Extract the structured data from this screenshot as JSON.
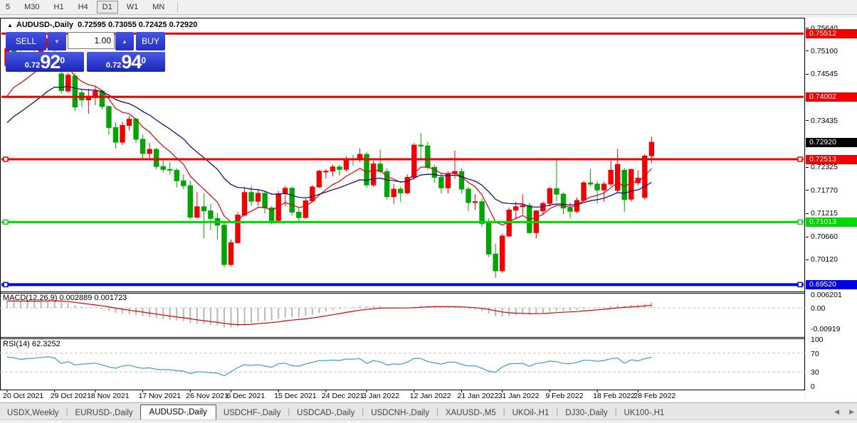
{
  "toolbar": {
    "items": [
      {
        "label": "5",
        "active": false
      },
      {
        "label": "M30",
        "active": false
      },
      {
        "label": "H1",
        "active": false
      },
      {
        "label": "H4",
        "active": false
      },
      {
        "label": "D1",
        "active": true
      },
      {
        "label": "W1",
        "active": false
      },
      {
        "label": "MN",
        "active": false
      }
    ]
  },
  "icons": {
    "collapse": "▲",
    "spinner_down": "▼",
    "spinner_up": "▲",
    "scroll_left": "◀",
    "scroll_right": "▶"
  },
  "chart_header": {
    "symbol": "AUDUSD-,Daily",
    "ohlc": "0.72595 0.73055 0.72425 0.72920"
  },
  "trade_panel": {
    "sell_label": "SELL",
    "buy_label": "BUY",
    "volume": "1.00",
    "sell": {
      "prefix": "0.72",
      "big": "92",
      "sup": "0"
    },
    "buy": {
      "prefix": "0.72",
      "big": "94",
      "sup": "0"
    }
  },
  "indicators": {
    "macd": {
      "label": "MACD(12,26,9)",
      "values": "0.002889 0.001723",
      "axis": [
        {
          "label": "0.006201",
          "value": 0.006201
        },
        {
          "label": "0.00",
          "value": 0
        },
        {
          "label": "-0.00919",
          "value": -0.00919
        }
      ]
    },
    "rsi": {
      "label": "RSI(14)",
      "value": "62.3252",
      "axis": [
        {
          "label": "100",
          "value": 100
        },
        {
          "label": "70",
          "value": 70
        },
        {
          "label": "30",
          "value": 30
        },
        {
          "label": "0",
          "value": 0
        }
      ],
      "levels": [
        70,
        30
      ]
    }
  },
  "price_axis": {
    "ticks": [
      "0.75640",
      "0.75100",
      "0.74545",
      "0.73435",
      "0.72325",
      "0.71770",
      "0.71215",
      "0.70660",
      "0.70120"
    ],
    "badges": [
      {
        "label": "0.75512",
        "price": 0.75512,
        "bg": "#f20000",
        "fg": "#ffffff"
      },
      {
        "label": "0.74002",
        "price": 0.74002,
        "bg": "#f20000",
        "fg": "#ffffff"
      },
      {
        "label": "0.72920",
        "price": 0.7292,
        "bg": "#000000",
        "fg": "#ffffff"
      },
      {
        "label": "0.72513",
        "price": 0.72513,
        "bg": "#f20000",
        "fg": "#ffffff"
      },
      {
        "label": "0.71013",
        "price": 0.71013,
        "bg": "#00d800",
        "fg": "#ffffff"
      },
      {
        "label": "0.69520",
        "price": 0.6952,
        "bg": "#0000e8",
        "fg": "#ffffff"
      }
    ]
  },
  "bottom_tabs": {
    "tabs": [
      {
        "label": "USDX,Weekly",
        "active": false
      },
      {
        "label": "EURUSD-,Daily",
        "active": false
      },
      {
        "label": "AUDUSD-,Daily",
        "active": true
      },
      {
        "label": "USDCHF-,Daily",
        "active": false
      },
      {
        "label": "USDCAD-,Daily",
        "active": false
      },
      {
        "label": "USDCNH-,Daily",
        "active": false
      },
      {
        "label": "XAUUSD-,M5",
        "active": false
      },
      {
        "label": "UKOil-,H1",
        "active": false
      },
      {
        "label": "DJ30-,Daily",
        "active": false
      },
      {
        "label": "UK100-,H1",
        "active": false
      }
    ]
  },
  "chart_data": {
    "type": "candlestick",
    "symbol": "AUDUSD-",
    "timeframe": "Daily",
    "current": {
      "open": 0.72595,
      "high": 0.73055,
      "low": 0.72425,
      "close": 0.7292
    },
    "colors": {
      "up": "#f20000",
      "down": "#00a400",
      "ma_fast": "#e00000",
      "ma_slow": "#000080",
      "macd_bar": "#b8b8b8",
      "macd_signal": "#e00000",
      "rsi_line": "#3d9bd5",
      "grid_dash": "#c4c4c4"
    },
    "candles": [
      [
        0.7475,
        0.753,
        0.7465,
        0.7515
      ],
      [
        0.7515,
        0.7546,
        0.7485,
        0.7496
      ],
      [
        0.7496,
        0.751,
        0.7458,
        0.7468
      ],
      [
        0.7468,
        0.75,
        0.746,
        0.7489
      ],
      [
        0.7489,
        0.751,
        0.747,
        0.75
      ],
      [
        0.75,
        0.7536,
        0.749,
        0.7518
      ],
      [
        0.7518,
        0.7555,
        0.751,
        0.7539
      ],
      [
        0.7539,
        0.7547,
        0.75,
        0.7518
      ],
      [
        0.7455,
        0.746,
        0.7408,
        0.7415
      ],
      [
        0.7414,
        0.7458,
        0.741,
        0.7452
      ],
      [
        0.745,
        0.7456,
        0.7366,
        0.7376
      ],
      [
        0.741,
        0.742,
        0.7376,
        0.7393
      ],
      [
        0.7393,
        0.742,
        0.736,
        0.7402
      ],
      [
        0.7402,
        0.7427,
        0.738,
        0.7414
      ],
      [
        0.7414,
        0.7418,
        0.737,
        0.7377
      ],
      [
        0.7377,
        0.738,
        0.731,
        0.7327
      ],
      [
        0.7327,
        0.734,
        0.7277,
        0.7292
      ],
      [
        0.7292,
        0.734,
        0.7285,
        0.7332
      ],
      [
        0.7332,
        0.7355,
        0.732,
        0.7347
      ],
      [
        0.7347,
        0.735,
        0.729,
        0.7299
      ],
      [
        0.7299,
        0.731,
        0.725,
        0.7265
      ],
      [
        0.7265,
        0.729,
        0.7253,
        0.7275
      ],
      [
        0.7275,
        0.7278,
        0.7227,
        0.7234
      ],
      [
        0.7234,
        0.725,
        0.722,
        0.7227
      ],
      [
        0.7227,
        0.7244,
        0.7215,
        0.7225
      ],
      [
        0.7225,
        0.723,
        0.7184,
        0.72
      ],
      [
        0.72,
        0.7215,
        0.718,
        0.7188
      ],
      [
        0.7188,
        0.72,
        0.7108,
        0.7113
      ],
      [
        0.7113,
        0.7173,
        0.711,
        0.7138
      ],
      [
        0.7138,
        0.717,
        0.7063,
        0.7128
      ],
      [
        0.7128,
        0.7145,
        0.7082,
        0.711
      ],
      [
        0.711,
        0.7123,
        0.706,
        0.7094
      ],
      [
        0.7094,
        0.71,
        0.6993,
        0.7
      ],
      [
        0.7,
        0.706,
        0.6995,
        0.7052
      ],
      [
        0.7052,
        0.7125,
        0.705,
        0.7118
      ],
      [
        0.7118,
        0.7185,
        0.7115,
        0.7172
      ],
      [
        0.7172,
        0.7187,
        0.714,
        0.7151
      ],
      [
        0.7151,
        0.7178,
        0.714,
        0.717
      ],
      [
        0.717,
        0.7176,
        0.7122,
        0.7135
      ],
      [
        0.7135,
        0.714,
        0.7096,
        0.7105
      ],
      [
        0.7105,
        0.7176,
        0.71,
        0.7169
      ],
      [
        0.7169,
        0.7188,
        0.7139,
        0.7182
      ],
      [
        0.7182,
        0.7186,
        0.7117,
        0.7125
      ],
      [
        0.7125,
        0.7135,
        0.71,
        0.7112
      ],
      [
        0.7112,
        0.7158,
        0.711,
        0.7152
      ],
      [
        0.7152,
        0.719,
        0.715,
        0.7185
      ],
      [
        0.7185,
        0.7226,
        0.7183,
        0.7223
      ],
      [
        0.7223,
        0.7228,
        0.7205,
        0.7223
      ],
      [
        0.7223,
        0.7238,
        0.721,
        0.7233
      ],
      [
        0.7233,
        0.7238,
        0.7212,
        0.7227
      ],
      [
        0.7227,
        0.7258,
        0.7222,
        0.7253
      ],
      [
        0.7253,
        0.7262,
        0.7236,
        0.7252
      ],
      [
        0.7252,
        0.7277,
        0.7245,
        0.7263
      ],
      [
        0.7263,
        0.7269,
        0.7183,
        0.719
      ],
      [
        0.719,
        0.7248,
        0.7185,
        0.724
      ],
      [
        0.724,
        0.7274,
        0.7218,
        0.7222
      ],
      [
        0.7222,
        0.723,
        0.7155,
        0.7162
      ],
      [
        0.7162,
        0.7193,
        0.7145,
        0.718
      ],
      [
        0.718,
        0.7186,
        0.715,
        0.7171
      ],
      [
        0.7171,
        0.7215,
        0.7168,
        0.7208
      ],
      [
        0.7208,
        0.729,
        0.7202,
        0.7285
      ],
      [
        0.7285,
        0.7314,
        0.7252,
        0.7283
      ],
      [
        0.7283,
        0.7293,
        0.7225,
        0.7232
      ],
      [
        0.7232,
        0.7238,
        0.7195,
        0.7208
      ],
      [
        0.7208,
        0.722,
        0.717,
        0.7183
      ],
      [
        0.7183,
        0.7222,
        0.717,
        0.7217
      ],
      [
        0.7217,
        0.7272,
        0.7205,
        0.7222
      ],
      [
        0.7222,
        0.723,
        0.717,
        0.718
      ],
      [
        0.718,
        0.7185,
        0.7128,
        0.7148
      ],
      [
        0.7148,
        0.7168,
        0.713,
        0.715
      ],
      [
        0.715,
        0.7158,
        0.709,
        0.7098
      ],
      [
        0.7098,
        0.711,
        0.7018,
        0.7025
      ],
      [
        0.7025,
        0.705,
        0.6968,
        0.6985
      ],
      [
        0.6985,
        0.7074,
        0.698,
        0.7068
      ],
      [
        0.7068,
        0.7136,
        0.7065,
        0.713
      ],
      [
        0.713,
        0.715,
        0.7108,
        0.7138
      ],
      [
        0.7138,
        0.7168,
        0.712,
        0.7141
      ],
      [
        0.7141,
        0.7148,
        0.7073,
        0.7076
      ],
      [
        0.7076,
        0.713,
        0.7062,
        0.7128
      ],
      [
        0.7128,
        0.715,
        0.7118,
        0.7146
      ],
      [
        0.7146,
        0.7185,
        0.7138,
        0.7181
      ],
      [
        0.7181,
        0.7249,
        0.7151,
        0.7168
      ],
      [
        0.7168,
        0.7172,
        0.712,
        0.7135
      ],
      [
        0.7135,
        0.7148,
        0.711,
        0.7127
      ],
      [
        0.7127,
        0.716,
        0.7122,
        0.7153
      ],
      [
        0.7153,
        0.7199,
        0.715,
        0.7195
      ],
      [
        0.7195,
        0.7228,
        0.7186,
        0.7192
      ],
      [
        0.7192,
        0.72,
        0.7146,
        0.7178
      ],
      [
        0.7178,
        0.7198,
        0.715,
        0.7192
      ],
      [
        0.7192,
        0.7248,
        0.7187,
        0.7225
      ],
      [
        0.7177,
        0.7276,
        0.7172,
        0.7239
      ],
      [
        0.7225,
        0.723,
        0.7126,
        0.7155
      ],
      [
        0.7156,
        0.7228,
        0.715,
        0.7227
      ],
      [
        0.7195,
        0.7225,
        0.7188,
        0.7206
      ],
      [
        0.716,
        0.7263,
        0.7155,
        0.7259
      ],
      [
        0.72595,
        0.73055,
        0.72425,
        0.7292
      ]
    ],
    "date_ticks": [
      {
        "i": 0,
        "label": "20 Oct 2021"
      },
      {
        "i": 7,
        "label": "29 Oct 2021"
      },
      {
        "i": 13,
        "label": "8 Nov 2021"
      },
      {
        "i": 20,
        "label": "17 Nov 2021"
      },
      {
        "i": 27,
        "label": "26 Nov 2021"
      },
      {
        "i": 33,
        "label": "6 Dec 2021"
      },
      {
        "i": 40,
        "label": "15 Dec 2021"
      },
      {
        "i": 47,
        "label": "24 Dec 2021"
      },
      {
        "i": 53,
        "label": "3 Jan 2022"
      },
      {
        "i": 60,
        "label": "12 Jan 2022"
      },
      {
        "i": 67,
        "label": "21 Jan 2022"
      },
      {
        "i": 73,
        "label": "31 Jan 2022"
      },
      {
        "i": 80,
        "label": "9 Feb 2022"
      },
      {
        "i": 87,
        "label": "18 Feb 2022"
      },
      {
        "i": 93,
        "label": "28 Feb 2022"
      }
    ],
    "hlines": [
      {
        "price": 0.75512,
        "color": "#f20000",
        "width": 3,
        "handles": false
      },
      {
        "price": 0.74002,
        "color": "#f20000",
        "width": 3,
        "handles": false
      },
      {
        "price": 0.72513,
        "color": "#f20000",
        "width": 3,
        "handles": true
      },
      {
        "price": 0.71013,
        "color": "#00d800",
        "width": 3,
        "handles": true
      },
      {
        "price": 0.6952,
        "color": "#0000e8",
        "width": 4,
        "handles": true
      }
    ],
    "overlays": {
      "ma_fast": {
        "type": "ema",
        "period": 8,
        "seed": 0.737
      },
      "ma_slow": {
        "type": "ema",
        "period": 20,
        "seed": 0.732
      }
    },
    "macd": {
      "fast": 12,
      "slow": 26,
      "signal": 9,
      "seed_fast": 0.7448,
      "seed_slow": 0.742,
      "seed_signal": 0.003
    },
    "rsi": {
      "period": 14,
      "seed_gain": 0.0026,
      "seed_loss": 0.0016
    }
  }
}
